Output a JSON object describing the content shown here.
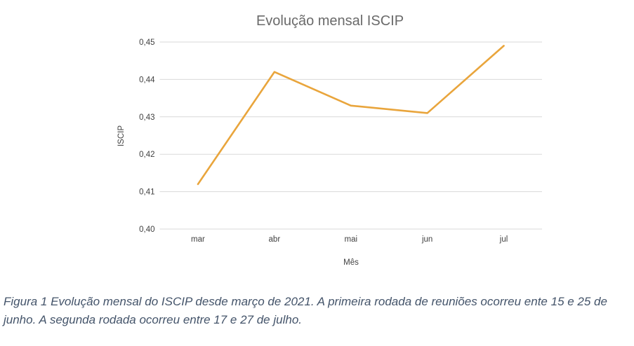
{
  "figure_caption": {
    "lines": [
      "Figura 1 Evolução mensal do ISCIP desde março de 2021. A primeira rodada de reuniões ocorreu ente 15 e 25 de",
      "junho. A segunda rodada ocorreu entre 17 e 27 de julho."
    ],
    "color": "#44546A"
  },
  "chart_data": {
    "type": "line",
    "title": "Evolução mensal ISCIP",
    "xlabel": "Mês",
    "ylabel": "ISCIP",
    "categories": [
      "mar",
      "abr",
      "mai",
      "jun",
      "jul"
    ],
    "values": [
      0.412,
      0.442,
      0.433,
      0.431,
      0.449
    ],
    "ylim": [
      0.4,
      0.45
    ],
    "ytick_step": 0.01,
    "ytick_labels": [
      "0,40",
      "0,41",
      "0,42",
      "0,43",
      "0,44",
      "0,45"
    ],
    "grid": true,
    "legend": "none",
    "colors": {
      "line": "#E9A53C",
      "grid": "#D9D9D9",
      "title": "#6A6A6A",
      "ticks": "#404040",
      "axis_labels": "#404040"
    }
  }
}
